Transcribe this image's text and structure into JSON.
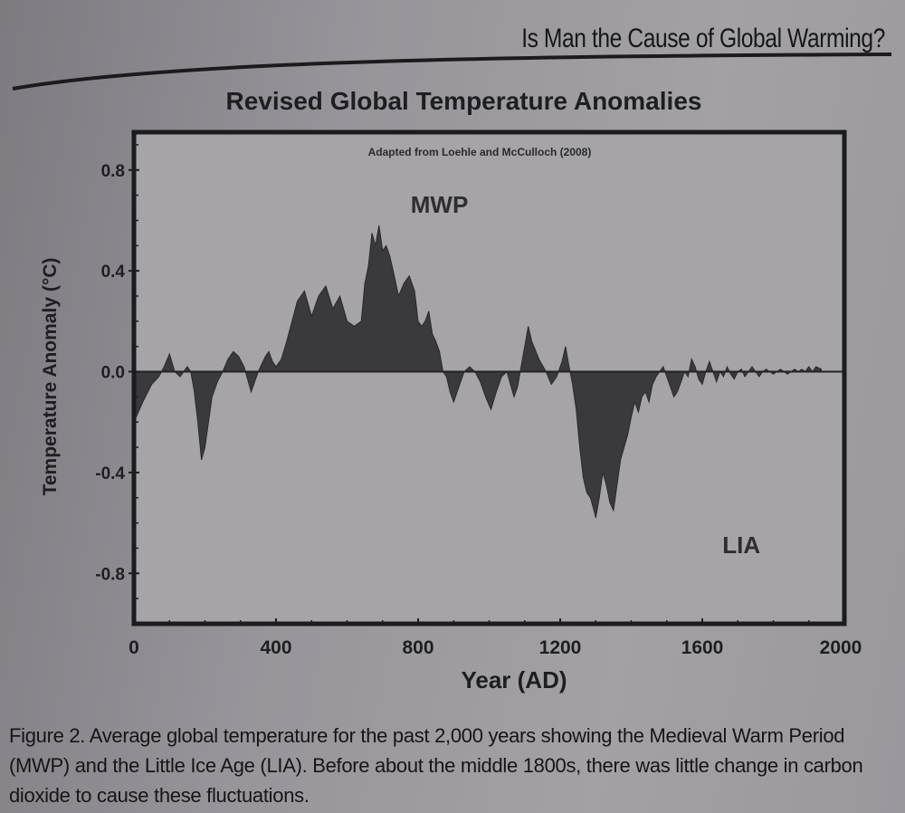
{
  "header": {
    "title": "Is Man the Cause of Global Warming?"
  },
  "caption": {
    "text": "Figure 2. Average global temperature for the past 2,000 years showing the Medieval Warm Period (MWP) and the Little Ice Age (LIA). Before about the middle 1800s, there was little change in carbon dioxide to cause these fluctuations."
  },
  "colors": {
    "page": "#9a989d",
    "plot_bg": "#a6a4a8",
    "fill": "#3a393d",
    "ink": "#1e1e22"
  },
  "chart_data": {
    "type": "area",
    "title": "Revised Global Temperature Anomalies",
    "subtitle": "Adapted from Loehle and McCulloch (2008)",
    "xlabel": "Year (AD)",
    "ylabel": "Temperature Anomaly (°C)",
    "xlim": [
      0,
      2000
    ],
    "ylim": [
      -1.0,
      0.95
    ],
    "xticks": [
      "0",
      "400",
      "800",
      "1200",
      "1600",
      "2000"
    ],
    "yticks": [
      "0.8",
      "0.4",
      "0.0",
      "-0.4",
      "-0.8"
    ],
    "grid": false,
    "annotations": [
      {
        "text": "MWP",
        "x": 860,
        "y": 0.63
      },
      {
        "text": "LIA",
        "x": 1710,
        "y": -0.72
      }
    ],
    "series": [
      {
        "x": [
          0,
          25,
          50,
          70,
          85,
          100,
          115,
          130,
          150,
          160,
          170,
          180,
          190,
          200,
          210,
          220,
          235,
          250,
          265,
          280,
          295,
          310,
          330,
          350,
          370,
          380,
          390,
          400,
          415,
          430,
          445,
          460,
          480,
          500,
          520,
          540,
          560,
          580,
          600,
          620,
          640,
          650,
          660,
          670,
          680,
          690,
          700,
          710,
          720,
          730,
          745,
          760,
          775,
          790,
          800,
          810,
          820,
          830,
          840,
          850,
          855,
          860,
          870,
          880,
          890,
          900,
          915,
          930,
          945,
          960,
          975,
          990,
          1005,
          1020,
          1035,
          1050,
          1060,
          1070,
          1080,
          1090,
          1100,
          1110,
          1120,
          1140,
          1160,
          1175,
          1190,
          1205,
          1215,
          1225,
          1235,
          1245,
          1255,
          1265,
          1275,
          1285,
          1295,
          1300,
          1310,
          1320,
          1330,
          1340,
          1350,
          1360,
          1370,
          1380,
          1390,
          1400,
          1410,
          1420,
          1430,
          1440,
          1450,
          1460,
          1470,
          1480,
          1490,
          1500,
          1510,
          1520,
          1530,
          1540,
          1550,
          1560,
          1570,
          1580,
          1590,
          1600,
          1610,
          1620,
          1630,
          1640,
          1650,
          1660,
          1670,
          1680,
          1690,
          1700,
          1710,
          1720,
          1730,
          1740,
          1750,
          1760,
          1770,
          1780,
          1790,
          1800,
          1810,
          1820,
          1830,
          1840,
          1850,
          1860,
          1870,
          1880,
          1890,
          1900,
          1910,
          1920,
          1935
        ],
        "y": [
          -0.2,
          -0.12,
          -0.05,
          -0.02,
          0.02,
          0.07,
          0.0,
          -0.02,
          0.02,
          0.0,
          -0.08,
          -0.2,
          -0.35,
          -0.3,
          -0.2,
          -0.1,
          -0.04,
          0.0,
          0.05,
          0.08,
          0.06,
          0.02,
          -0.08,
          0.0,
          0.06,
          0.08,
          0.04,
          0.02,
          0.05,
          0.12,
          0.2,
          0.28,
          0.32,
          0.22,
          0.3,
          0.34,
          0.25,
          0.3,
          0.2,
          0.18,
          0.2,
          0.35,
          0.42,
          0.55,
          0.5,
          0.58,
          0.48,
          0.5,
          0.46,
          0.4,
          0.3,
          0.35,
          0.38,
          0.32,
          0.2,
          0.18,
          0.2,
          0.24,
          0.15,
          0.12,
          0.1,
          0.08,
          0.0,
          -0.02,
          -0.08,
          -0.12,
          -0.06,
          0.0,
          0.02,
          0.0,
          -0.04,
          -0.1,
          -0.15,
          -0.08,
          -0.02,
          0.0,
          -0.05,
          -0.1,
          -0.06,
          0.02,
          0.1,
          0.18,
          0.12,
          0.05,
          0.0,
          -0.05,
          -0.02,
          0.04,
          0.1,
          0.02,
          -0.05,
          -0.15,
          -0.3,
          -0.42,
          -0.48,
          -0.5,
          -0.55,
          -0.58,
          -0.5,
          -0.4,
          -0.45,
          -0.52,
          -0.55,
          -0.45,
          -0.35,
          -0.3,
          -0.25,
          -0.18,
          -0.12,
          -0.16,
          -0.1,
          -0.08,
          -0.12,
          -0.05,
          -0.02,
          0.0,
          0.02,
          -0.02,
          -0.06,
          -0.1,
          -0.08,
          -0.04,
          0.0,
          -0.02,
          0.05,
          0.02,
          -0.03,
          -0.05,
          0.0,
          0.04,
          0.0,
          -0.04,
          0.0,
          -0.02,
          0.02,
          -0.01,
          -0.03,
          0.0,
          0.01,
          -0.02,
          0.0,
          0.02,
          0.0,
          -0.02,
          0.0,
          0.01,
          0.0,
          -0.01,
          0.0,
          0.01,
          0.0,
          -0.01,
          0.0,
          0.01,
          0.0,
          0.01,
          0.0,
          0.02,
          0.0,
          0.02,
          0.01
        ]
      }
    ]
  }
}
